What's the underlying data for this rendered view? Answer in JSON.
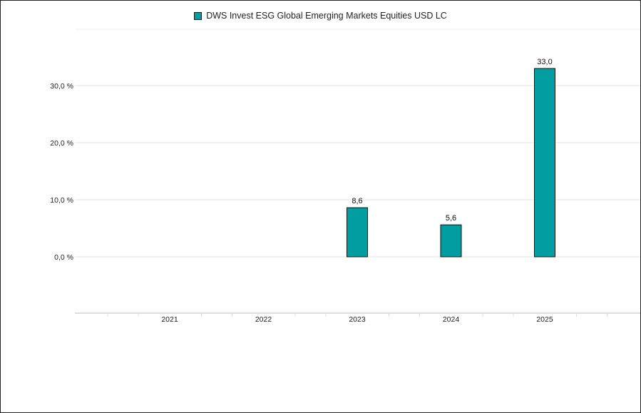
{
  "chart_data": {
    "type": "bar",
    "legend": [
      "DWS Invest ESG Global Emerging Markets Equities USD LC"
    ],
    "categories": [
      "2021",
      "2022",
      "2023",
      "2024",
      "2025"
    ],
    "series": [
      {
        "name": "DWS Invest ESG Global Emerging Markets Equities USD LC",
        "values": [
          null,
          null,
          8.6,
          5.6,
          33.0
        ],
        "labels": [
          "",
          "",
          "8,6",
          "5,6",
          "33,0"
        ],
        "color": "#009ea0"
      }
    ],
    "yticks": [
      0,
      10,
      20,
      30
    ],
    "ytick_labels": [
      "0,0 %",
      "10,0 %",
      "20,0 %",
      "30,0 %"
    ],
    "ylim": [
      -10,
      40
    ],
    "grid": true,
    "legend_position": "top-center"
  }
}
